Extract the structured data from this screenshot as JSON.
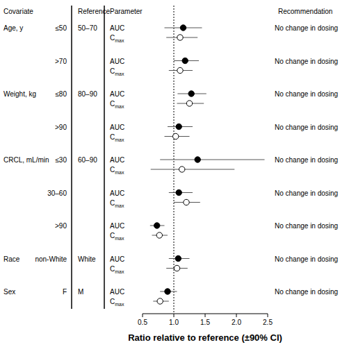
{
  "chart_data": {
    "type": "forest",
    "xlabel": "Ratio relative to reference (±90% CI)",
    "xlim": [
      0.5,
      2.5
    ],
    "xticks": [
      0.5,
      {
        "value": 1,
        "label": "1.0"
      },
      1.5,
      {
        "value": 2,
        "label": "2.0"
      },
      2.5
    ],
    "reference_line": 1,
    "headers": {
      "covariate": "Covariate",
      "reference": "Reference",
      "parameter": "Parameter",
      "recommendation": "Recommendation"
    },
    "parameters": [
      {
        "name": "AUC",
        "color": "#000000",
        "marker": "filled"
      },
      {
        "name": "C",
        "subscript": "max",
        "color": "#000000",
        "marker": "open"
      }
    ],
    "covariates": [
      {
        "name": "Age, y",
        "reference": "50–70",
        "subgroups": [
          {
            "label": "≤50",
            "recommendation": "No change in dosing",
            "values": [
              1.15,
              1.1
            ],
            "lower": [
              0.85,
              0.88
            ],
            "upper": [
              1.45,
              1.38
            ]
          },
          {
            "label": ">70",
            "recommendation": "No change in dosing",
            "values": [
              1.18,
              1.1
            ],
            "lower": [
              1.0,
              0.92
            ],
            "upper": [
              1.4,
              1.3
            ]
          }
        ]
      },
      {
        "name": "Weight, kg",
        "reference": "80–90",
        "subgroups": [
          {
            "label": "≤80",
            "recommendation": "No change in dosing",
            "values": [
              1.28,
              1.25
            ],
            "lower": [
              1.06,
              1.05
            ],
            "upper": [
              1.52,
              1.48
            ]
          },
          {
            "label": ">90",
            "recommendation": "No change in dosing",
            "values": [
              1.08,
              1.03
            ],
            "lower": [
              0.9,
              0.85
            ],
            "upper": [
              1.3,
              1.25
            ]
          }
        ]
      },
      {
        "name": "CRCL, mL/min",
        "reference": "60–90",
        "subgroups": [
          {
            "label": "≤30",
            "recommendation": "No change in dosing",
            "values": [
              1.38,
              1.13
            ],
            "lower": [
              0.78,
              0.63
            ],
            "upper": [
              2.45,
              1.97
            ]
          },
          {
            "label": "30–60",
            "recommendation": "No change in dosing",
            "values": [
              1.08,
              1.2
            ],
            "lower": [
              0.92,
              1.0
            ],
            "upper": [
              1.3,
              1.42
            ]
          },
          {
            "label": ">90",
            "recommendation": "No change in dosing",
            "values": [
              0.73,
              0.77
            ],
            "lower": [
              0.62,
              0.65
            ],
            "upper": [
              0.85,
              0.9
            ]
          }
        ]
      },
      {
        "name": "Race",
        "reference": "White",
        "subgroups": [
          {
            "label": "non-White",
            "recommendation": "No change in dosing",
            "values": [
              1.07,
              1.05
            ],
            "lower": [
              0.92,
              0.88
            ],
            "upper": [
              1.25,
              1.22
            ]
          }
        ]
      },
      {
        "name": "Sex",
        "reference": "M",
        "subgroups": [
          {
            "label": "F",
            "recommendation": "No change in dosing",
            "values": [
              0.9,
              0.78
            ],
            "lower": [
              0.78,
              0.67
            ],
            "upper": [
              1.05,
              0.92
            ]
          }
        ]
      }
    ]
  }
}
